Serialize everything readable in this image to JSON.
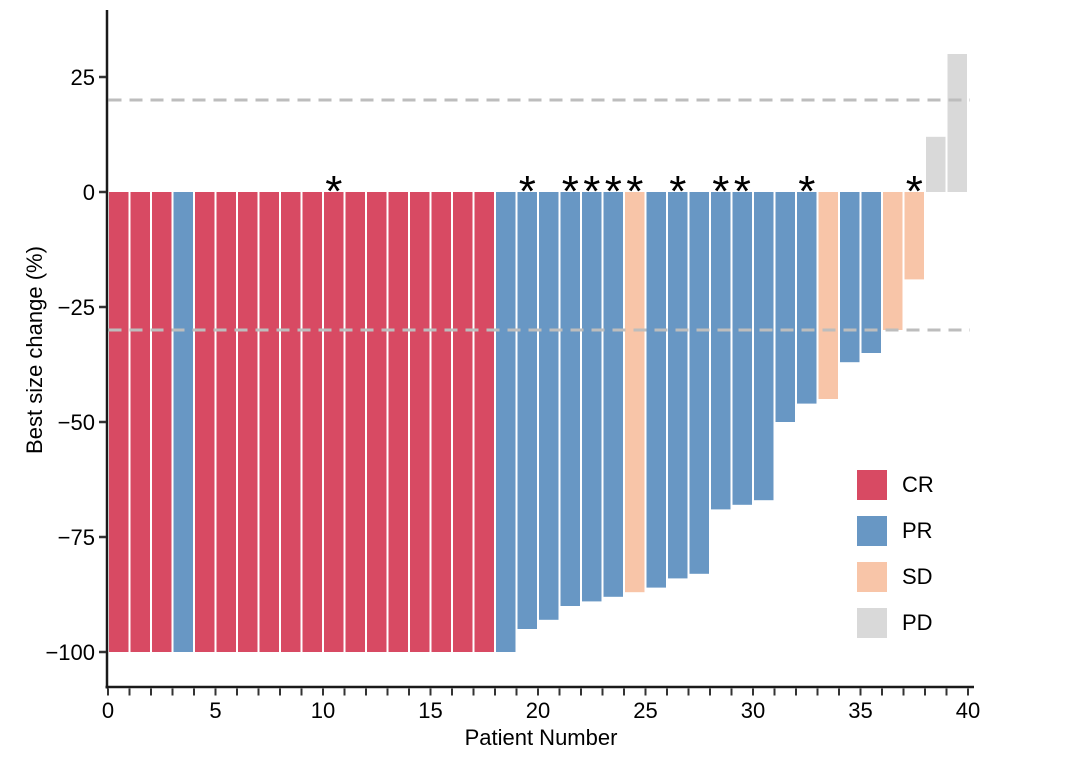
{
  "chart_data": {
    "type": "bar",
    "subtype": "waterfall",
    "title": "",
    "xlabel": "Patient Number",
    "ylabel": "Best size change (%)",
    "x_range": [
      0,
      40.6
    ],
    "ylim": [
      -108,
      39
    ],
    "grid": "off",
    "legend_position": "inside-right",
    "x_ticks_major": [
      {
        "value": 0,
        "label": "0"
      },
      {
        "value": 5,
        "label": "5"
      },
      {
        "value": 10,
        "label": "10"
      },
      {
        "value": 15,
        "label": "15"
      },
      {
        "value": 20,
        "label": "20"
      },
      {
        "value": 25,
        "label": "25"
      },
      {
        "value": 30,
        "label": "30"
      },
      {
        "value": 35,
        "label": "35"
      },
      {
        "value": 40,
        "label": "40"
      }
    ],
    "x_minor_tick_step": 1,
    "y_ticks": [
      {
        "value": 25,
        "label": "25"
      },
      {
        "value": 0,
        "label": "0"
      },
      {
        "value": -25,
        "label": "−25"
      },
      {
        "value": -50,
        "label": "−50"
      },
      {
        "value": -75,
        "label": "−75"
      },
      {
        "value": -100,
        "label": "−100"
      }
    ],
    "reference_lines": [
      {
        "value": 20,
        "style": "dashed"
      },
      {
        "value": -30,
        "style": "dashed"
      }
    ],
    "flag_symbol": "*",
    "legend": [
      {
        "key": "CR",
        "label": "CR"
      },
      {
        "key": "PR",
        "label": "PR"
      },
      {
        "key": "SD",
        "label": "SD"
      },
      {
        "key": "PD",
        "label": "PD"
      }
    ],
    "colors": {
      "CR": "#d84a63",
      "PR": "#6897c4",
      "SD": "#f8c5a8",
      "PD": "#d9d9d9",
      "reference_line": "#bdbdbd",
      "axis": "#1a1a1a",
      "tick": "#333333",
      "text": "#000000"
    },
    "patients": [
      {
        "id": 1,
        "value": -100,
        "response": "CR",
        "asterisk": false
      },
      {
        "id": 2,
        "value": -100,
        "response": "CR",
        "asterisk": false
      },
      {
        "id": 3,
        "value": -100,
        "response": "CR",
        "asterisk": false
      },
      {
        "id": 4,
        "value": -100,
        "response": "PR",
        "asterisk": false
      },
      {
        "id": 5,
        "value": -100,
        "response": "CR",
        "asterisk": false
      },
      {
        "id": 6,
        "value": -100,
        "response": "CR",
        "asterisk": false
      },
      {
        "id": 7,
        "value": -100,
        "response": "CR",
        "asterisk": false
      },
      {
        "id": 8,
        "value": -100,
        "response": "CR",
        "asterisk": false
      },
      {
        "id": 9,
        "value": -100,
        "response": "CR",
        "asterisk": false
      },
      {
        "id": 10,
        "value": -100,
        "response": "CR",
        "asterisk": false
      },
      {
        "id": 11,
        "value": -100,
        "response": "CR",
        "asterisk": true
      },
      {
        "id": 12,
        "value": -100,
        "response": "CR",
        "asterisk": false
      },
      {
        "id": 13,
        "value": -100,
        "response": "CR",
        "asterisk": false
      },
      {
        "id": 14,
        "value": -100,
        "response": "CR",
        "asterisk": false
      },
      {
        "id": 15,
        "value": -100,
        "response": "CR",
        "asterisk": false
      },
      {
        "id": 16,
        "value": -100,
        "response": "CR",
        "asterisk": false
      },
      {
        "id": 17,
        "value": -100,
        "response": "CR",
        "asterisk": false
      },
      {
        "id": 18,
        "value": -100,
        "response": "CR",
        "asterisk": false
      },
      {
        "id": 19,
        "value": -100,
        "response": "PR",
        "asterisk": false
      },
      {
        "id": 20,
        "value": -95,
        "response": "PR",
        "asterisk": true
      },
      {
        "id": 21,
        "value": -93,
        "response": "PR",
        "asterisk": false
      },
      {
        "id": 22,
        "value": -90,
        "response": "PR",
        "asterisk": true
      },
      {
        "id": 23,
        "value": -89,
        "response": "PR",
        "asterisk": true
      },
      {
        "id": 24,
        "value": -88,
        "response": "PR",
        "asterisk": true
      },
      {
        "id": 25,
        "value": -87,
        "response": "SD",
        "asterisk": true
      },
      {
        "id": 26,
        "value": -86,
        "response": "PR",
        "asterisk": false
      },
      {
        "id": 27,
        "value": -84,
        "response": "PR",
        "asterisk": true
      },
      {
        "id": 28,
        "value": -83,
        "response": "PR",
        "asterisk": false
      },
      {
        "id": 29,
        "value": -69,
        "response": "PR",
        "asterisk": true
      },
      {
        "id": 30,
        "value": -68,
        "response": "PR",
        "asterisk": true
      },
      {
        "id": 31,
        "value": -67,
        "response": "PR",
        "asterisk": false
      },
      {
        "id": 32,
        "value": -50,
        "response": "PR",
        "asterisk": false
      },
      {
        "id": 33,
        "value": -46,
        "response": "PR",
        "asterisk": true
      },
      {
        "id": 34,
        "value": -45,
        "response": "SD",
        "asterisk": false
      },
      {
        "id": 35,
        "value": -37,
        "response": "PR",
        "asterisk": false
      },
      {
        "id": 36,
        "value": -35,
        "response": "PR",
        "asterisk": false
      },
      {
        "id": 37,
        "value": -30,
        "response": "SD",
        "asterisk": false
      },
      {
        "id": 38,
        "value": -19,
        "response": "SD",
        "asterisk": true
      },
      {
        "id": 39,
        "value": 12,
        "response": "PD",
        "asterisk": false
      },
      {
        "id": 40,
        "value": 30,
        "response": "PD",
        "asterisk": false
      }
    ]
  }
}
